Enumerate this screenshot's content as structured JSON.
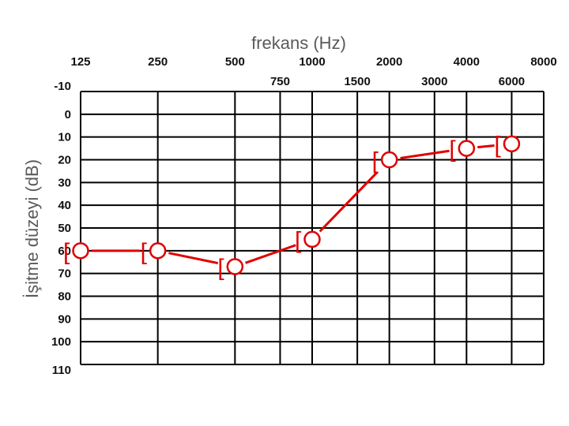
{
  "chart_data": {
    "type": "line",
    "title": "frekans (Hz)",
    "xlabel": "frekans (Hz)",
    "ylabel": "İşitme düzeyi (dB)",
    "x_ticks_top": [
      "125",
      "250",
      "500",
      "1000",
      "2000",
      "4000",
      "8000"
    ],
    "x_ticks_bottom": [
      "750",
      "1500",
      "3000",
      "6000"
    ],
    "y_ticks": [
      "-10",
      "0",
      "10",
      "20",
      "30",
      "40",
      "50",
      "60",
      "70",
      "80",
      "90",
      "100",
      "110"
    ],
    "ylim": [
      -10,
      110
    ],
    "y_inverted": true,
    "x_scale": "log",
    "grid": true,
    "series": [
      {
        "marker": "[ O",
        "color": "#e00000",
        "x": [
          125,
          250,
          500,
          1000,
          2000,
          4000,
          6000
        ],
        "y": [
          60,
          60,
          67,
          55,
          20,
          15,
          13
        ]
      }
    ]
  }
}
